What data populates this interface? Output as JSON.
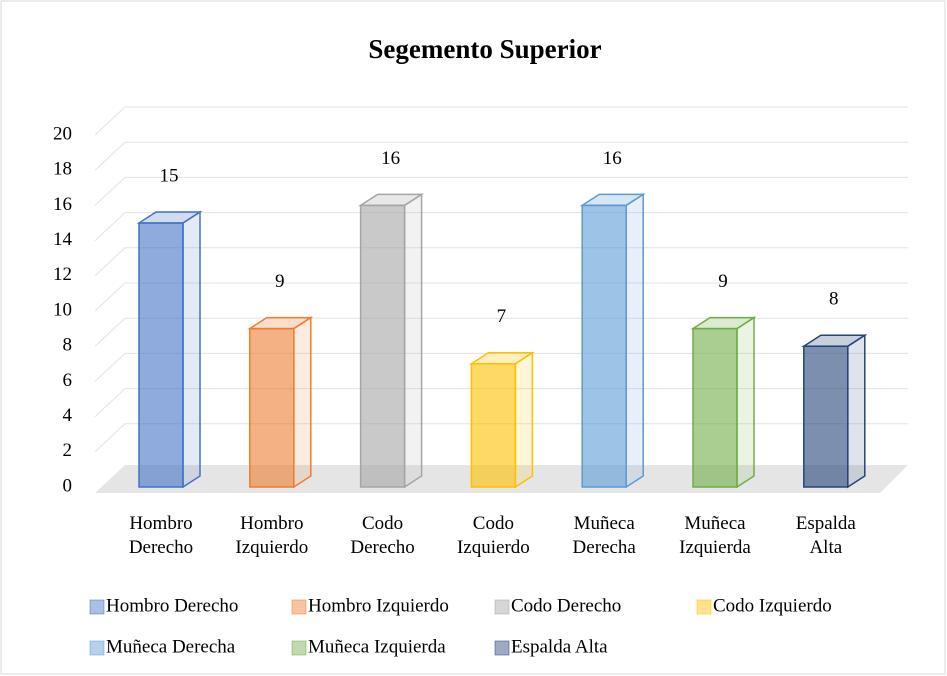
{
  "chart_data": {
    "type": "bar3d",
    "title": "Segemento Superior",
    "categories": [
      "Hombro Derecho",
      "Hombro Izquierdo",
      "Codo Derecho",
      "Codo Izquierdo",
      "Muñeca Derecha",
      "Muñeca Izquierda",
      "Espalda Alta"
    ],
    "values": [
      15,
      9,
      16,
      7,
      16,
      9,
      8
    ],
    "colors": [
      "#4472c4",
      "#ed7d31",
      "#a5a5a5",
      "#ffc000",
      "#5b9bd5",
      "#70ad47",
      "#264478"
    ],
    "ylim": [
      0,
      20
    ],
    "yticks": [
      0,
      2,
      4,
      6,
      8,
      10,
      12,
      14,
      16,
      18,
      20
    ],
    "grid": true,
    "legend": "bottom"
  }
}
